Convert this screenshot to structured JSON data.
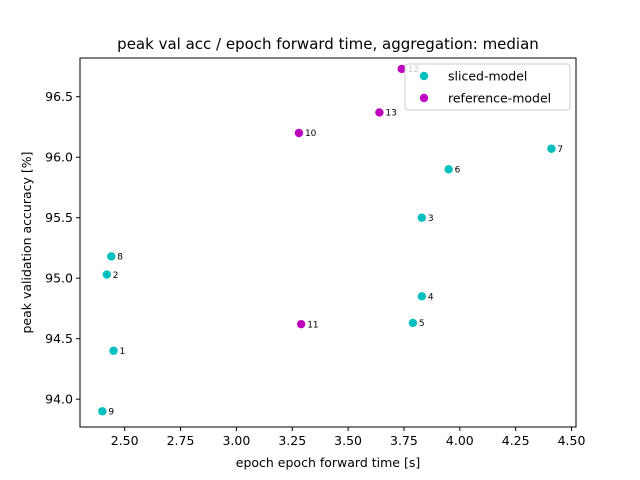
{
  "chart_data": {
    "type": "scatter",
    "title": "peak val acc / epoch forward time, aggregation: median",
    "xlabel": "epoch epoch forward time [s]",
    "ylabel": "peak validation accuracy [%]",
    "xlim": [
      2.3,
      4.52
    ],
    "ylim": [
      93.77,
      96.82
    ],
    "xticks": [
      2.5,
      2.75,
      3.0,
      3.25,
      3.5,
      3.75,
      4.0,
      4.25,
      4.5
    ],
    "yticks": [
      94.0,
      94.5,
      95.0,
      95.5,
      96.0,
      96.5
    ],
    "xtick_labels": [
      "2.50",
      "2.75",
      "3.00",
      "3.25",
      "3.50",
      "3.75",
      "4.00",
      "4.25",
      "4.50"
    ],
    "ytick_labels": [
      "94.0",
      "94.5",
      "95.0",
      "95.5",
      "96.0",
      "96.5"
    ],
    "grid": false,
    "legend_position": "top-right",
    "series": [
      {
        "name": "sliced-model",
        "color": "#00bfbf",
        "points": [
          {
            "x": 2.45,
            "y": 94.4,
            "label": "1"
          },
          {
            "x": 2.42,
            "y": 95.03,
            "label": "2"
          },
          {
            "x": 3.83,
            "y": 95.5,
            "label": "3"
          },
          {
            "x": 3.83,
            "y": 94.85,
            "label": "4"
          },
          {
            "x": 3.79,
            "y": 94.63,
            "label": "5"
          },
          {
            "x": 3.95,
            "y": 95.9,
            "label": "6"
          },
          {
            "x": 4.41,
            "y": 96.07,
            "label": "7"
          },
          {
            "x": 2.44,
            "y": 95.18,
            "label": "8"
          },
          {
            "x": 2.4,
            "y": 93.9,
            "label": "9"
          }
        ]
      },
      {
        "name": "reference-model",
        "color": "#bf00bf",
        "points": [
          {
            "x": 3.28,
            "y": 96.2,
            "label": "10"
          },
          {
            "x": 3.29,
            "y": 94.62,
            "label": "11"
          },
          {
            "x": 3.74,
            "y": 96.73,
            "label": "12"
          },
          {
            "x": 3.64,
            "y": 96.37,
            "label": "13"
          }
        ]
      }
    ]
  }
}
